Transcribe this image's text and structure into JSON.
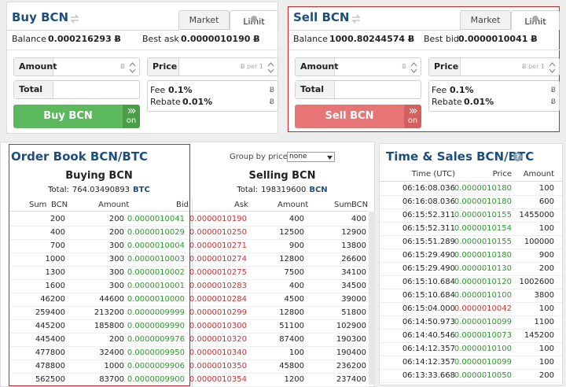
{
  "buy": {
    "title": "Buy BCN",
    "tabs": [
      "Market",
      "Limit"
    ],
    "balance_label": "Balance",
    "balance": "0.000216293 Ƀ",
    "best_label": "Best ask",
    "best": "0.0000010190 Ƀ",
    "amount": "Amount",
    "amount_unit": "Ƀ",
    "price": "Price",
    "price_unit": "Ƀ per 1",
    "total": "Total",
    "fee_label": "Fee",
    "fee": "0.1%",
    "fee_unit": "Ƀ",
    "rebate_label": "Rebate",
    "rebate": "0.01%",
    "rebate_unit": "Ƀ",
    "button": "Buy BCN",
    "toggle": "on",
    "color": "#5cb85c",
    "toggle_color": "#4a9e4a"
  },
  "sell": {
    "title": "Sell BCN",
    "tabs": [
      "Market",
      "Limit"
    ],
    "balance_label": "Balance",
    "balance": "1000.80244574 Ƀ",
    "best_label": "Best bid",
    "best": "0.0000010041 Ƀ",
    "amount": "Amount",
    "amount_unit": "Ƀ",
    "price": "Price",
    "price_unit": "Ƀ per 1",
    "total": "Total",
    "fee_label": "Fee",
    "fee": "0.1%",
    "fee_unit": "Ƀ",
    "rebate_label": "Rebate",
    "rebate": "0.01%",
    "rebate_unit": "Ƀ",
    "button": "Sell BCN",
    "toggle": "on",
    "color": "#e87575",
    "toggle_color": "#d45f5f"
  },
  "order_book": {
    "title": "Order Book BCN/BTC",
    "group_label": "Group by price:",
    "group_value": "none",
    "buying": {
      "title": "Buying BCN",
      "total_label": "Total:",
      "total": "764.03490893",
      "total_unit": "BTC",
      "columns": [
        "Sum",
        "BCN",
        "Amount",
        "Bid"
      ],
      "price_color": "#2a9a2a",
      "rows": [
        [
          "200",
          "200",
          "0.0000010041"
        ],
        [
          "400",
          "200",
          "0.0000010029"
        ],
        [
          "700",
          "300",
          "0.0000010004"
        ],
        [
          "1000",
          "300",
          "0.0000010003"
        ],
        [
          "1300",
          "300",
          "0.0000010002"
        ],
        [
          "1600",
          "300",
          "0.0000010001"
        ],
        [
          "46200",
          "44600",
          "0.0000010000"
        ],
        [
          "259400",
          "213200",
          "0.0000009999"
        ],
        [
          "445200",
          "185800",
          "0.0000009990"
        ],
        [
          "445400",
          "200",
          "0.0000009976"
        ],
        [
          "477800",
          "32400",
          "0.0000009950"
        ],
        [
          "478800",
          "1000",
          "0.0000009906"
        ],
        [
          "562500",
          "83700",
          "0.0000009900"
        ]
      ]
    },
    "selling": {
      "title": "Selling BCN",
      "total_label": "Total:",
      "total": "198319600",
      "total_unit": "BCN",
      "columns": [
        "Ask",
        "Amount",
        "Sum",
        "BCN"
      ],
      "price_color": "#d03030",
      "rows": [
        [
          "0.0000010190",
          "400",
          "400"
        ],
        [
          "0.0000010250",
          "12500",
          "12900"
        ],
        [
          "0.0000010271",
          "900",
          "13800"
        ],
        [
          "0.0000010274",
          "12800",
          "26600"
        ],
        [
          "0.0000010275",
          "7500",
          "34100"
        ],
        [
          "0.0000010283",
          "400",
          "34500"
        ],
        [
          "0.0000010284",
          "4500",
          "39000"
        ],
        [
          "0.0000010299",
          "12800",
          "51800"
        ],
        [
          "0.0000010300",
          "51100",
          "102900"
        ],
        [
          "0.0000010320",
          "87400",
          "190300"
        ],
        [
          "0.0000010340",
          "100",
          "190400"
        ],
        [
          "0.0000010350",
          "45800",
          "236200"
        ],
        [
          "0.0000010354",
          "1200",
          "237400"
        ]
      ]
    }
  },
  "time_sales": {
    "title": "Time & Sales BCN/BTC",
    "help": "?",
    "columns": [
      "Time (UTC)",
      "Price",
      "Amount"
    ],
    "rows": [
      {
        "time": "06:16:08.036",
        "price": "0.0000010180",
        "amount": "100",
        "color": "#2a9a2a"
      },
      {
        "time": "06:16:08.036",
        "price": "0.0000010180",
        "amount": "600",
        "color": "#2a9a2a"
      },
      {
        "time": "06:15:52.311",
        "price": "0.0000010155",
        "amount": "1455000",
        "color": "#2a9a2a"
      },
      {
        "time": "06:15:52.311",
        "price": "0.0000010154",
        "amount": "100",
        "color": "#2a9a2a"
      },
      {
        "time": "06:15:51.289",
        "price": "0.0000010155",
        "amount": "100000",
        "color": "#2a9a2a"
      },
      {
        "time": "06:15:29.490",
        "price": "0.0000010180",
        "amount": "900",
        "color": "#2a9a2a"
      },
      {
        "time": "06:15:29.490",
        "price": "0.0000010130",
        "amount": "200",
        "color": "#2a9a2a"
      },
      {
        "time": "06:15:10.684",
        "price": "0.0000010120",
        "amount": "1002600",
        "color": "#2a9a2a"
      },
      {
        "time": "06:15:10.684",
        "price": "0.0000010100",
        "amount": "3800",
        "color": "#2a9a2a"
      },
      {
        "time": "06:15:04.000",
        "price": "0.0000010042",
        "amount": "100",
        "color": "#d03030"
      },
      {
        "time": "06:14:50.973",
        "price": "0.0000010099",
        "amount": "1100",
        "color": "#2a9a2a"
      },
      {
        "time": "06:14:40.546",
        "price": "0.0000010073",
        "amount": "145200",
        "color": "#2a9a2a"
      },
      {
        "time": "06:14:12.357",
        "price": "0.0000010100",
        "amount": "100",
        "color": "#2a9a2a"
      },
      {
        "time": "06:14:12.357",
        "price": "0.0000010099",
        "amount": "100",
        "color": "#2a9a2a"
      },
      {
        "time": "06:13:33.668",
        "price": "0.0000010050",
        "amount": "200",
        "color": "#2a9a2a"
      }
    ]
  }
}
